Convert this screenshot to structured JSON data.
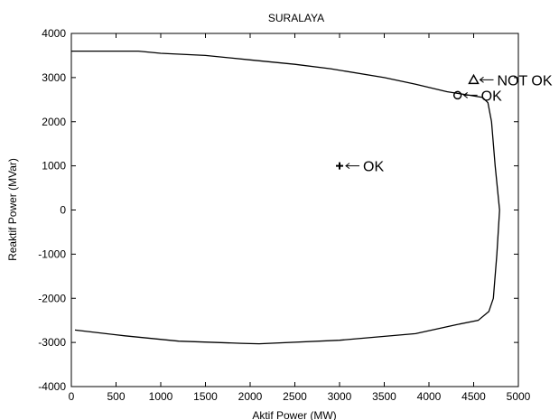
{
  "chart_data": {
    "type": "line",
    "title": "SURALAYA",
    "xlabel": "Aktif Power (MW)",
    "ylabel": "Reaktif Power (MVar)",
    "xlim": [
      0,
      5000
    ],
    "ylim": [
      -4000,
      4000
    ],
    "xticks": [
      0,
      500,
      1000,
      1500,
      2000,
      2500,
      3000,
      3500,
      4000,
      4500,
      5000
    ],
    "yticks": [
      -4000,
      -3000,
      -2000,
      -1000,
      0,
      1000,
      2000,
      3000,
      4000
    ],
    "grid": false,
    "series": [
      {
        "points": [
          [
            0,
            3600
          ],
          [
            750,
            3600
          ],
          [
            1000,
            3550
          ],
          [
            1500,
            3500
          ],
          [
            2000,
            3400
          ],
          [
            2500,
            3300
          ],
          [
            2900,
            3200
          ],
          [
            3500,
            3000
          ],
          [
            3850,
            2850
          ],
          [
            4200,
            2680
          ],
          [
            4450,
            2600
          ],
          [
            4600,
            2550
          ],
          [
            4660,
            2430
          ],
          [
            4700,
            2000
          ],
          [
            4740,
            1000
          ],
          [
            4790,
            0
          ],
          [
            4760,
            -1000
          ],
          [
            4720,
            -2000
          ],
          [
            4670,
            -2300
          ],
          [
            4550,
            -2500
          ],
          [
            4300,
            -2600
          ],
          [
            3850,
            -2800
          ],
          [
            3000,
            -2950
          ],
          [
            2100,
            -3030
          ],
          [
            1900,
            -3020
          ],
          [
            1200,
            -2970
          ],
          [
            600,
            -2850
          ],
          [
            40,
            -2720
          ]
        ]
      }
    ],
    "annotations": [
      {
        "marker": "+",
        "x": 3000,
        "y": 1000,
        "text": "OK"
      },
      {
        "marker": "o",
        "x": 4320,
        "y": 2600,
        "text": "OK"
      },
      {
        "marker": "triangle",
        "x": 4500,
        "y": 2950,
        "text": "NOT OK"
      }
    ]
  }
}
